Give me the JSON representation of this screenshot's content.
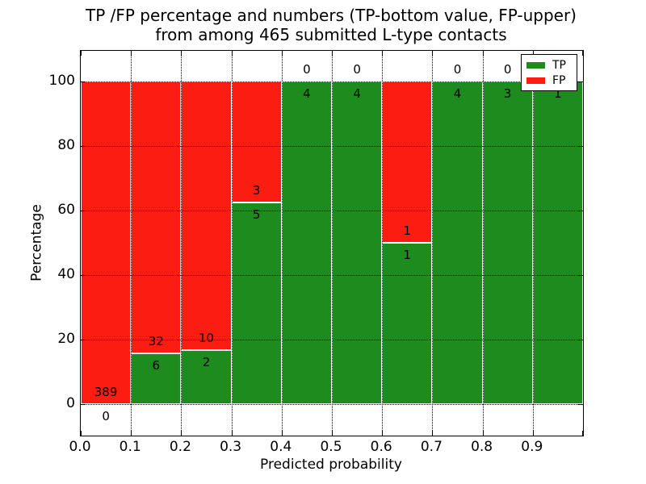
{
  "chart_data": {
    "type": "bar",
    "stacked": true,
    "normalized": "percent",
    "title_line1": "TP /FP percentage and numbers (TP-bottom value, FP-upper)",
    "title_line2": "from among 465 submitted L-type contacts",
    "xlabel": "Predicted probability",
    "ylabel": "Percentage",
    "total_contacts": 465,
    "xlim": [
      0.0,
      1.0
    ],
    "ylim": [
      -10,
      110
    ],
    "bin_width": 0.1,
    "x_tick_labels": [
      "0.0",
      "0.1",
      "0.2",
      "0.3",
      "0.4",
      "0.5",
      "0.6",
      "0.7",
      "0.8",
      "0.9"
    ],
    "y_ticks": [
      0,
      20,
      40,
      60,
      80,
      100
    ],
    "y_tick_labels": [
      "0",
      "20",
      "40",
      "60",
      "80",
      "100"
    ],
    "grid": true,
    "grid_style": "dotted",
    "bin_starts": [
      0.0,
      0.1,
      0.2,
      0.3,
      0.4,
      0.5,
      0.6,
      0.7,
      0.8,
      0.9
    ],
    "series": [
      {
        "name": "TP",
        "color": "#1e8b1e",
        "values": [
          0,
          6,
          2,
          5,
          4,
          4,
          1,
          4,
          3,
          1
        ]
      },
      {
        "name": "FP",
        "color": "#fb1d12",
        "values": [
          389,
          32,
          10,
          3,
          0,
          0,
          1,
          0,
          0,
          0
        ]
      }
    ],
    "tp_percentages": [
      0.0,
      15.8,
      16.7,
      62.5,
      100.0,
      100.0,
      50.0,
      100.0,
      100.0,
      100.0
    ],
    "legend": {
      "position": "upper right",
      "entries": [
        {
          "label": "TP",
          "color": "#1e8b1e"
        },
        {
          "label": "FP",
          "color": "#fb1d12"
        }
      ]
    }
  }
}
